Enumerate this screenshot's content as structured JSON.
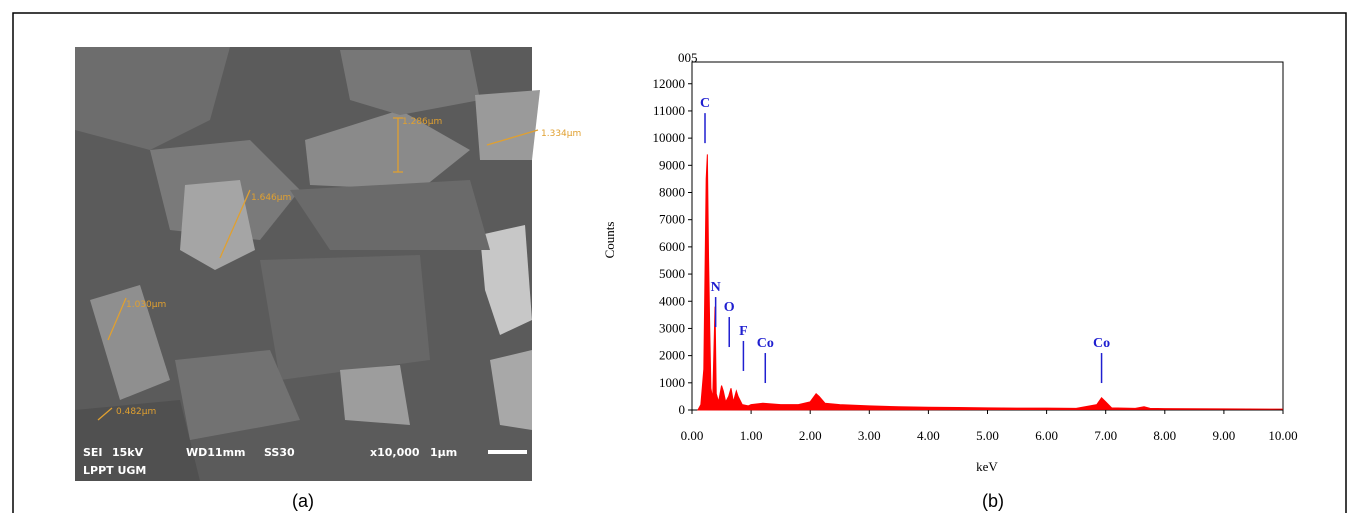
{
  "sem_image": {
    "info_line": [
      "SEI",
      "15kV",
      "WD11mm",
      "SS30",
      "x10,000",
      "1μm"
    ],
    "lab": "LPPT UGM",
    "measurements": [
      "1.286μm",
      "1.334μm",
      "1.646μm",
      "1.030μm",
      "0.482μm"
    ]
  },
  "captions": [
    "(a)",
    "(b)"
  ],
  "chart_data": {
    "type": "area",
    "title": "005",
    "x_label": "keV",
    "y_label": "Counts",
    "color": "#ff0000",
    "x": [
      0.1,
      0.15,
      0.2,
      0.24,
      0.26,
      0.28,
      0.3,
      0.32,
      0.35,
      0.39,
      0.41,
      0.45,
      0.5,
      0.53,
      0.57,
      0.62,
      0.66,
      0.7,
      0.75,
      0.78,
      0.85,
      0.95,
      1.0,
      1.2,
      1.5,
      1.8,
      2.0,
      2.1,
      2.15,
      2.25,
      2.5,
      3.0,
      3.5,
      4.0,
      4.5,
      5.0,
      5.5,
      6.0,
      6.5,
      6.85,
      6.93,
      7.0,
      7.1,
      7.5,
      7.65,
      7.75,
      8.0,
      9.0,
      10.0
    ],
    "values": [
      0,
      200,
      1500,
      8500,
      9400,
      5600,
      3000,
      800,
      400,
      3800,
      600,
      300,
      900,
      700,
      300,
      500,
      800,
      300,
      700,
      500,
      200,
      150,
      200,
      250,
      200,
      200,
      300,
      600,
      500,
      250,
      200,
      150,
      120,
      100,
      90,
      80,
      70,
      70,
      60,
      200,
      450,
      300,
      80,
      60,
      120,
      60,
      50,
      40,
      30
    ],
    "xlim": [
      0,
      10
    ],
    "ylim": [
      0,
      12800
    ],
    "xticks": [
      {
        "value": 0,
        "label": "0.00"
      },
      {
        "value": 1,
        "label": "1.00"
      },
      {
        "value": 2,
        "label": "2.00"
      },
      {
        "value": 3,
        "label": "3.00"
      },
      {
        "value": 4,
        "label": "4.00"
      },
      {
        "value": 5,
        "label": "5.00"
      },
      {
        "value": 6,
        "label": "6.00"
      },
      {
        "value": 7,
        "label": "7.00"
      },
      {
        "value": 8,
        "label": "8.00"
      },
      {
        "value": 9,
        "label": "9.00"
      },
      {
        "value": 10,
        "label": "10.00"
      }
    ],
    "yticks": [
      0,
      1000,
      2000,
      3000,
      4000,
      5000,
      6000,
      7000,
      8000,
      9000,
      10000,
      11000,
      12000
    ],
    "annotations": [
      {
        "label": "C",
        "x": 0.22,
        "y": 11140
      },
      {
        "label": "N",
        "x": 0.4,
        "y": 4375
      },
      {
        "label": "O",
        "x": 0.63,
        "y": 3640
      },
      {
        "label": "F",
        "x": 0.87,
        "y": 2760
      },
      {
        "label": "Co",
        "x": 1.24,
        "y": 2316
      },
      {
        "label": "Co",
        "x": 6.93,
        "y": 2316
      }
    ],
    "annotation_color": "#1f1fd0"
  }
}
